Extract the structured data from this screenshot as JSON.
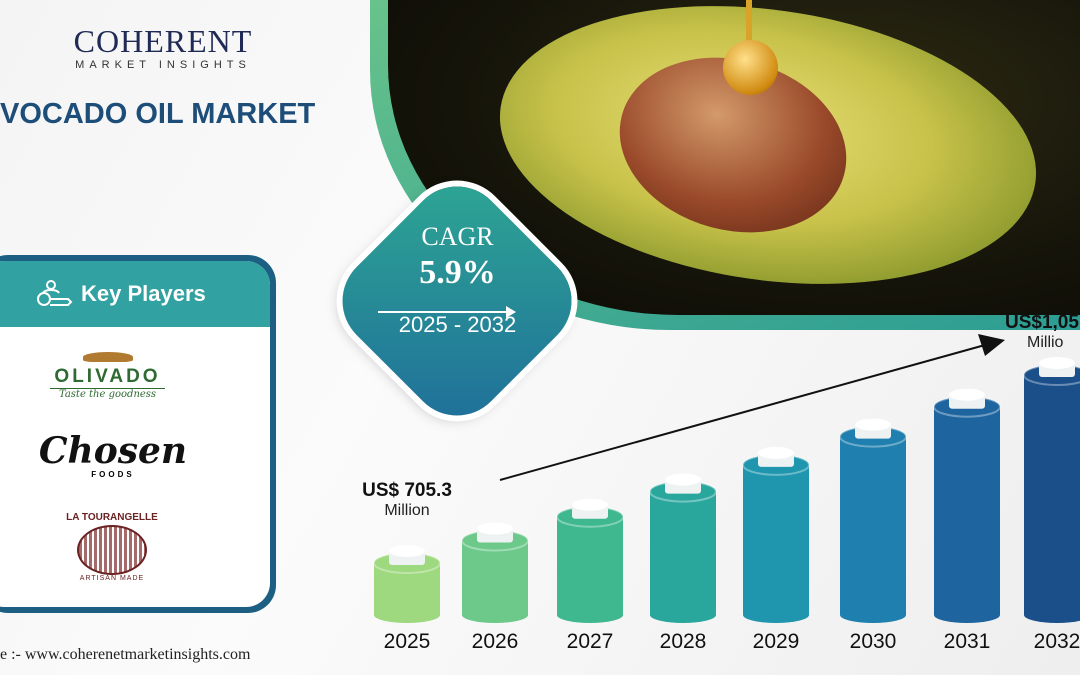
{
  "brand": {
    "name": "COHERENT",
    "tagline": "MARKET INSIGHTS"
  },
  "title": "VOCADO OIL MARKET",
  "cagr": {
    "label": "CAGR",
    "value": "5.9%",
    "period": "2025 - 2032"
  },
  "key_players": {
    "heading": "Key Players",
    "players": [
      {
        "name": "OLIVADO",
        "tagline": "Taste the goodness"
      },
      {
        "name": "Chosen",
        "sub": "FOODS"
      },
      {
        "name": "LA TOURANGELLE",
        "sub": "ARTISAN MADE"
      }
    ]
  },
  "source": "e :- www.coherenetmarketinsights.com",
  "chart_data": {
    "type": "bar",
    "categories": [
      "2025",
      "2026",
      "2027",
      "2028",
      "2029",
      "2030",
      "2031",
      "2032"
    ],
    "values": [
      705.3,
      746.9,
      791.0,
      837.6,
      887.1,
      939.4,
      994.8,
      1053.5
    ],
    "start_label": {
      "value": "US$ 705.3",
      "unit": "Million"
    },
    "end_label": {
      "value": "US$1,05",
      "unit": "Millio"
    },
    "colors": [
      "#9ed87f",
      "#6cc98a",
      "#3fb88f",
      "#2aa79d",
      "#1f96ad",
      "#1f7fae",
      "#1e65a0",
      "#1a4f8a"
    ]
  }
}
